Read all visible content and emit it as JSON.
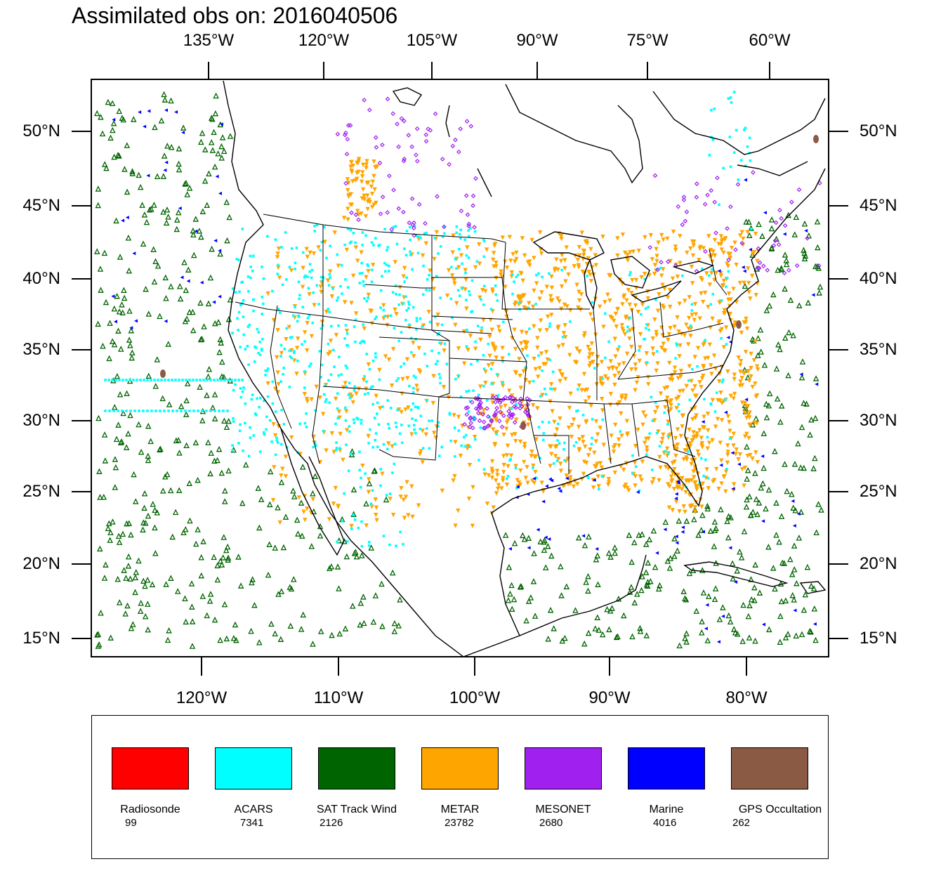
{
  "title": "Assimilated obs on: 2016040506",
  "top_lon_labels": [
    "135°W",
    "120°W",
    "105°W",
    "90°W",
    "75°W",
    "60°W"
  ],
  "bottom_lon_labels": [
    "120°W",
    "110°W",
    "100°W",
    "90°W",
    "80°W"
  ],
  "lat_labels": [
    "50°N",
    "45°N",
    "40°N",
    "35°N",
    "30°N",
    "25°N",
    "20°N",
    "15°N"
  ],
  "legend": [
    {
      "name": "Radiosonde",
      "count": "99",
      "color": "#ff0000"
    },
    {
      "name": "ACARS",
      "count": "7341",
      "color": "#00ffff"
    },
    {
      "name": "SAT Track Wind",
      "count": "2126",
      "color": "#006400"
    },
    {
      "name": "METAR",
      "count": "23782",
      "color": "#ffa500"
    },
    {
      "name": "MESONET",
      "count": "2680",
      "color": "#a020f0"
    },
    {
      "name": "Marine",
      "count": "4016",
      "color": "#0000ff"
    },
    {
      "name": "GPS Occultation",
      "count": "262",
      "color": "#8b5a44"
    }
  ],
  "map_colors": {
    "frame": "#000000",
    "coast": "#000000",
    "land": "#ffffff"
  }
}
